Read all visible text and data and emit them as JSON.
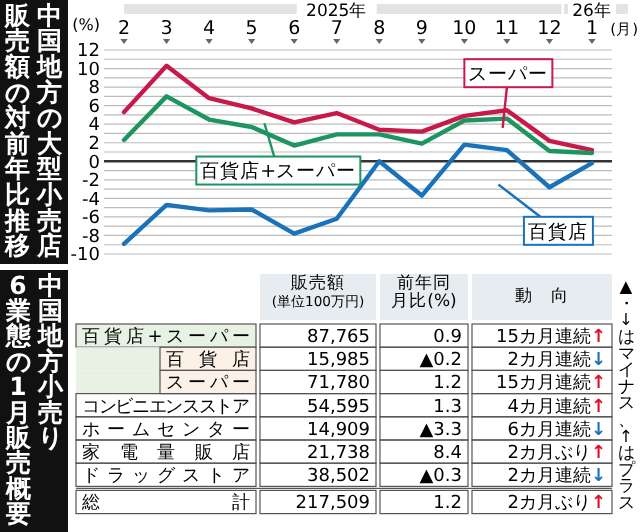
{
  "chart_data": [
    {
      "type": "line",
      "title": "中国地方の大型小売店",
      "subtitle": "販売額の対前年比推移",
      "xlabel": "(月)",
      "ylabel": "(%)",
      "categories": [
        "2",
        "3",
        "4",
        "5",
        "6",
        "7",
        "8",
        "9",
        "10",
        "11",
        "12",
        "1"
      ],
      "series": [
        {
          "name": "スーパー",
          "color": "#c8194b",
          "values": [
            5.3,
            10.3,
            6.8,
            5.7,
            4.2,
            5.2,
            3.4,
            3.2,
            4.9,
            5.5,
            2.2,
            1.2
          ]
        },
        {
          "name": "百貨店+スーパー",
          "color": "#1e9460",
          "values": [
            2.3,
            7.0,
            4.5,
            3.7,
            1.7,
            2.9,
            2.9,
            1.9,
            4.4,
            4.6,
            1.1,
            0.9
          ]
        },
        {
          "name": "百貨店",
          "color": "#1a73b8",
          "values": [
            -8.9,
            -4.7,
            -5.3,
            -5.2,
            -7.8,
            -6.2,
            0,
            -3.7,
            1.8,
            1.2,
            -2.8,
            -0.2
          ]
        }
      ],
      "ylim": [
        -10,
        12
      ],
      "yticks": [
        -10,
        {
          "value": -9,
          "label": null
        },
        -8,
        {
          "value": -7,
          "label": null
        },
        -6,
        {
          "value": -5,
          "label": null
        },
        -4,
        {
          "value": -3,
          "label": null
        },
        -2,
        {
          "value": -1,
          "label": null
        },
        0,
        {
          "value": 1,
          "label": null
        },
        2,
        {
          "value": 3,
          "label": null
        },
        4,
        {
          "value": 5,
          "label": null
        },
        6,
        {
          "value": 7,
          "label": null
        },
        8,
        {
          "value": 9,
          "label": null
        },
        10,
        {
          "value": 11,
          "label": null
        },
        12
      ],
      "grid": "y",
      "ref_lines": [
        {
          "axis": "y",
          "value": 0,
          "color": "#333333"
        }
      ],
      "annotations": [
        "2025年",
        "26年"
      ]
    },
    {
      "type": "other",
      "title": "中国地方小売り",
      "subtitle": "6業態の1月販売概要",
      "categories": [
        "百貨店+スーパー",
        "百貨店",
        "スーパー",
        "コンビニエンスストア",
        "ホームセンター",
        "家電量販店",
        "ドラッグストア",
        "総計"
      ],
      "series": [
        {
          "name": "販売額(単位100万円)",
          "values": [
            87765,
            15985,
            71780,
            54595,
            14909,
            21738,
            38502,
            217509
          ],
          "value_labels": [
            "87,765",
            "15,985",
            "71,780",
            "54,595",
            "14,909",
            "21,738",
            "38,502",
            "217,509"
          ]
        },
        {
          "name": "前年同月比(%)",
          "values": [
            null,
            null,
            null,
            null,
            null,
            null,
            null,
            null
          ],
          "value_labels": [
            "0.9",
            "▲0.2",
            "1.2",
            "1.3",
            "▲3.3",
            "8.4",
            "▲0.3",
            "1.2"
          ]
        },
        {
          "name": "動　向",
          "values": [
            null,
            null,
            null,
            null,
            null,
            null,
            null,
            null
          ],
          "value_labels": [
            "15カ月連続↑",
            "2カ月連続↓",
            "15カ月連続↑",
            "4カ月連続↑",
            "6カ月連続↓",
            "2カ月ぶり↑",
            "2カ月連続↓",
            "2カ月ぶり↑"
          ],
          "colors": [
            "#e0102a",
            "#1a73b8",
            "#e0102a",
            "#e0102a",
            "#1a73b8",
            "#e0102a",
            "#1a73b8",
            "#e0102a"
          ]
        }
      ],
      "annotations": [
        "▲・↓はマイナス、↑はプラス"
      ]
    }
  ]
}
